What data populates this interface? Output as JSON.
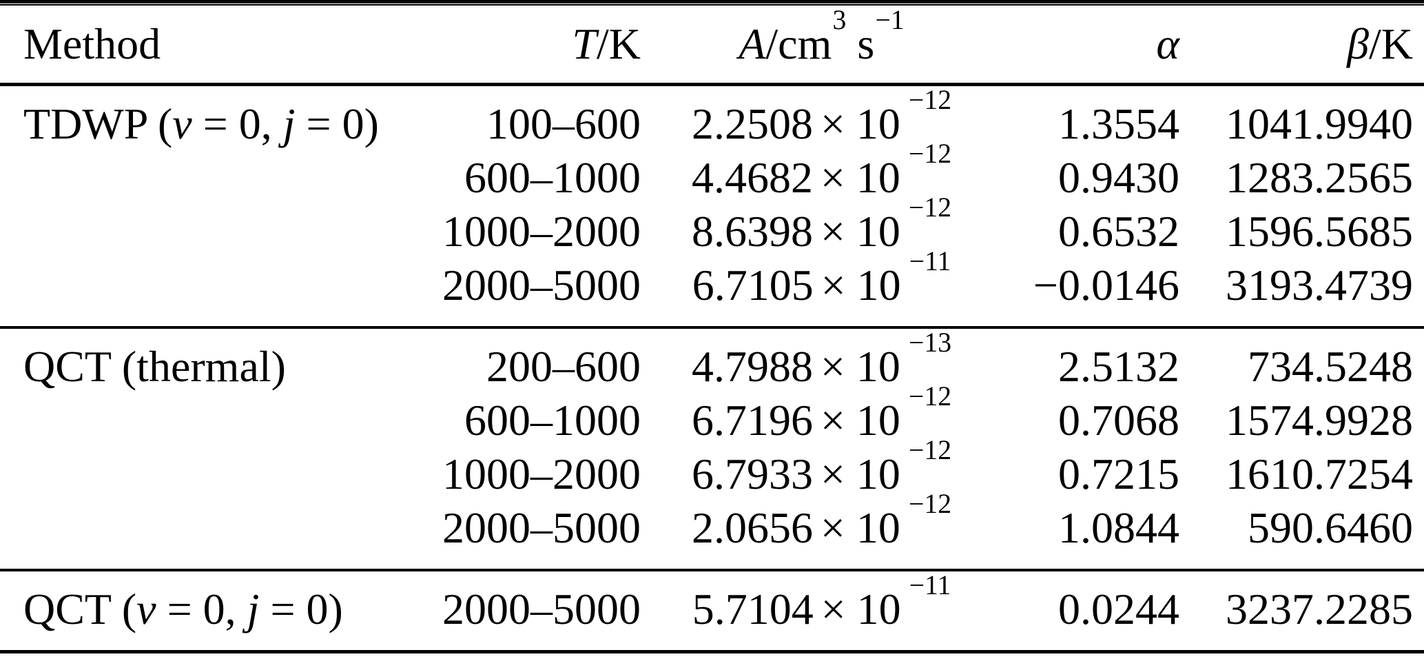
{
  "labels": {
    "times_ten": "× 10"
  },
  "headers": {
    "method": "Method",
    "T_sym": "T",
    "T_unit": "/K",
    "A_sym": "A",
    "A_unit1": "/cm",
    "A_sup1": "3",
    "A_unit2": " s",
    "A_sup2": "−1",
    "alpha_sym": "α",
    "beta_sym": "β",
    "beta_unit": "/K"
  },
  "rows": [
    {
      "method_pre": "TDWP (",
      "method_v": "v",
      "method_eq1": " = 0, ",
      "method_j": "j",
      "method_eq2": " = 0)",
      "T_range": "100–600",
      "A_mantissa": "2.2508",
      "A_exp": "−12",
      "alpha": "1.3554",
      "beta": "1041.9940"
    },
    {
      "T_range": "600–1000",
      "A_mantissa": "4.4682",
      "A_exp": "−12",
      "alpha": "0.9430",
      "beta": "1283.2565"
    },
    {
      "T_range": "1000–2000",
      "A_mantissa": "8.6398",
      "A_exp": "−12",
      "alpha": "0.6532",
      "beta": "1596.5685"
    },
    {
      "T_range": "2000–5000",
      "A_mantissa": "6.7105",
      "A_exp": "−11",
      "alpha": "−0.0146",
      "beta": "3193.4739"
    },
    {
      "method_pre": "QCT (thermal)",
      "T_range": "200–600",
      "A_mantissa": "4.7988",
      "A_exp": "−13",
      "alpha": "2.5132",
      "beta": "734.5248"
    },
    {
      "T_range": "600–1000",
      "A_mantissa": "6.7196",
      "A_exp": "−12",
      "alpha": "0.7068",
      "beta": "1574.9928"
    },
    {
      "T_range": "1000–2000",
      "A_mantissa": "6.7933",
      "A_exp": "−12",
      "alpha": "0.7215",
      "beta": "1610.7254"
    },
    {
      "T_range": "2000–5000",
      "A_mantissa": "2.0656",
      "A_exp": "−12",
      "alpha": "1.0844",
      "beta": "590.6460"
    },
    {
      "method_pre": "QCT (",
      "method_v": "v",
      "method_eq1": " = 0, ",
      "method_j": "j",
      "method_eq2": " = 0)",
      "T_range": "2000–5000",
      "A_mantissa": "5.7104",
      "A_exp": "−11",
      "alpha": "0.0244",
      "beta": "3237.2285"
    }
  ]
}
